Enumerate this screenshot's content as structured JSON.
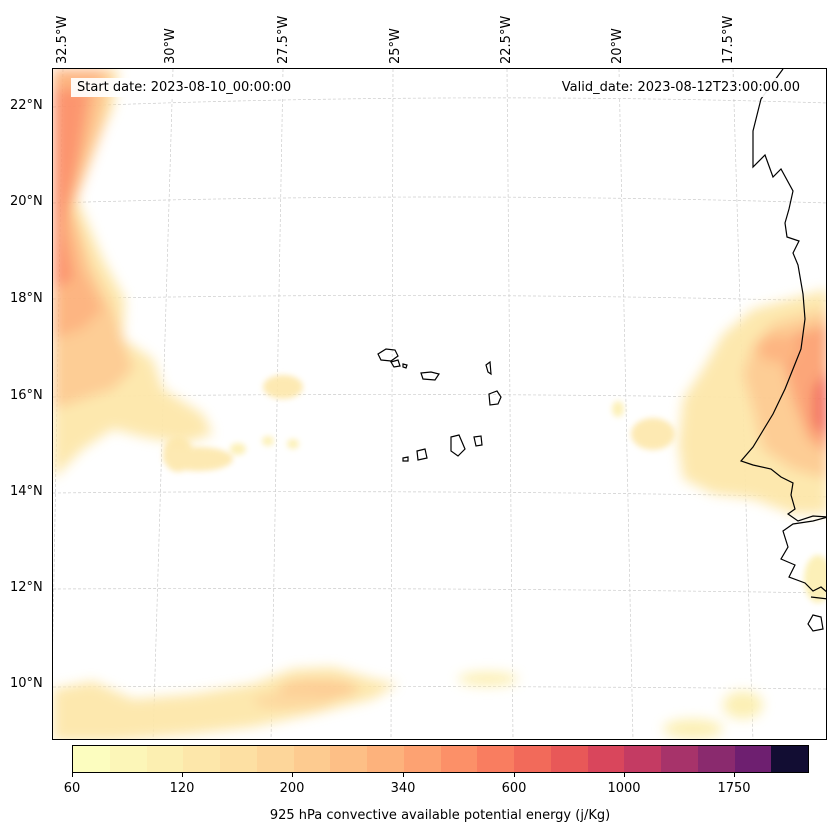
{
  "figure": {
    "start_date": "Start date: 2023-08-10_00:00:00",
    "valid_date": "Valid_date: 2023-08-12T23:00:00.00"
  },
  "lon_labels": [
    "32.5°W",
    "30°W",
    "27.5°W",
    "25°W",
    "22.5°W",
    "20°W",
    "17.5°W"
  ],
  "lat_labels": [
    "22°N",
    "20°N",
    "18°N",
    "16°N",
    "14°N",
    "12°N",
    "10°N"
  ],
  "colorbar": {
    "label": "925 hPa convective available potential energy (j/Kg)",
    "ticks": [
      "60",
      "120",
      "200",
      "340",
      "600",
      "1000",
      "1750"
    ],
    "colors": [
      "#fcfdbf",
      "#fcf6b8",
      "#fcefb1",
      "#fde7aa",
      "#fde0a3",
      "#fdd69a",
      "#fdcb90",
      "#fdbf86",
      "#fdb27c",
      "#fda272",
      "#fc9068",
      "#f97d60",
      "#f26a5a",
      "#e85858",
      "#d9465c",
      "#c43b63",
      "#a7336a",
      "#8a2a6e",
      "#6e1f70",
      "#120d33"
    ]
  },
  "map_features": {
    "coastline_color": "#000000",
    "gridline_color": "#cccccc"
  }
}
